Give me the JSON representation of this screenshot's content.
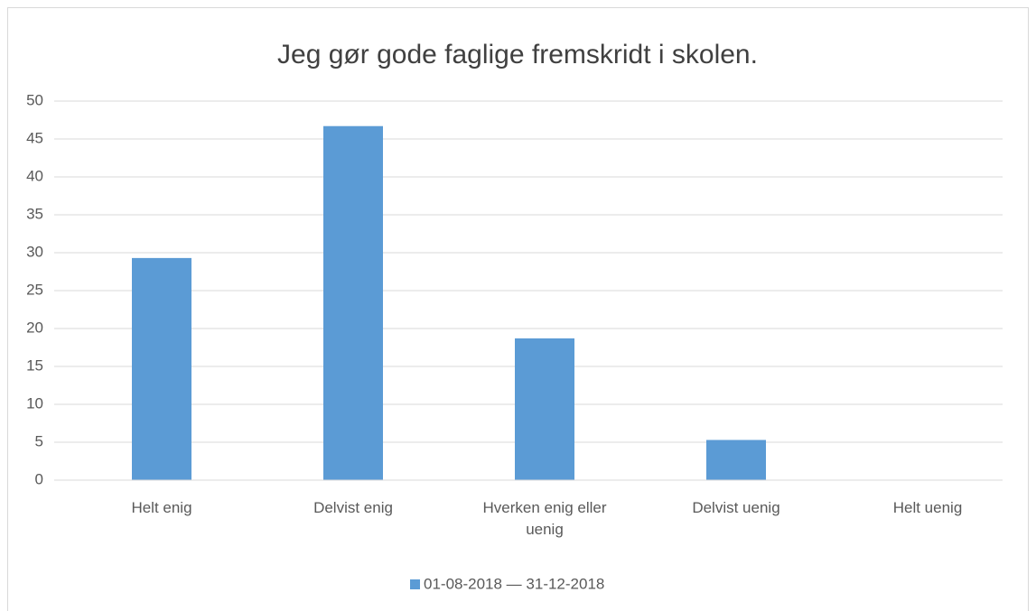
{
  "chart_data": {
    "type": "bar",
    "title": "Jeg gør gode faglige fremskridt i skolen.",
    "categories": [
      "Helt enig",
      "Delvist enig",
      "Hverken enig eller uenig",
      "Delvist uenig",
      "Helt uenig"
    ],
    "series": [
      {
        "name": "01-08-2018 — 31-12-2018",
        "color": "#5b9bd5",
        "values": [
          29.3,
          46.7,
          18.7,
          5.3,
          0
        ]
      }
    ],
    "ylim": [
      0,
      50
    ],
    "yticks": [
      0,
      5,
      10,
      15,
      20,
      25,
      30,
      35,
      40,
      45,
      50
    ],
    "grid": true,
    "legend": "bottom"
  }
}
